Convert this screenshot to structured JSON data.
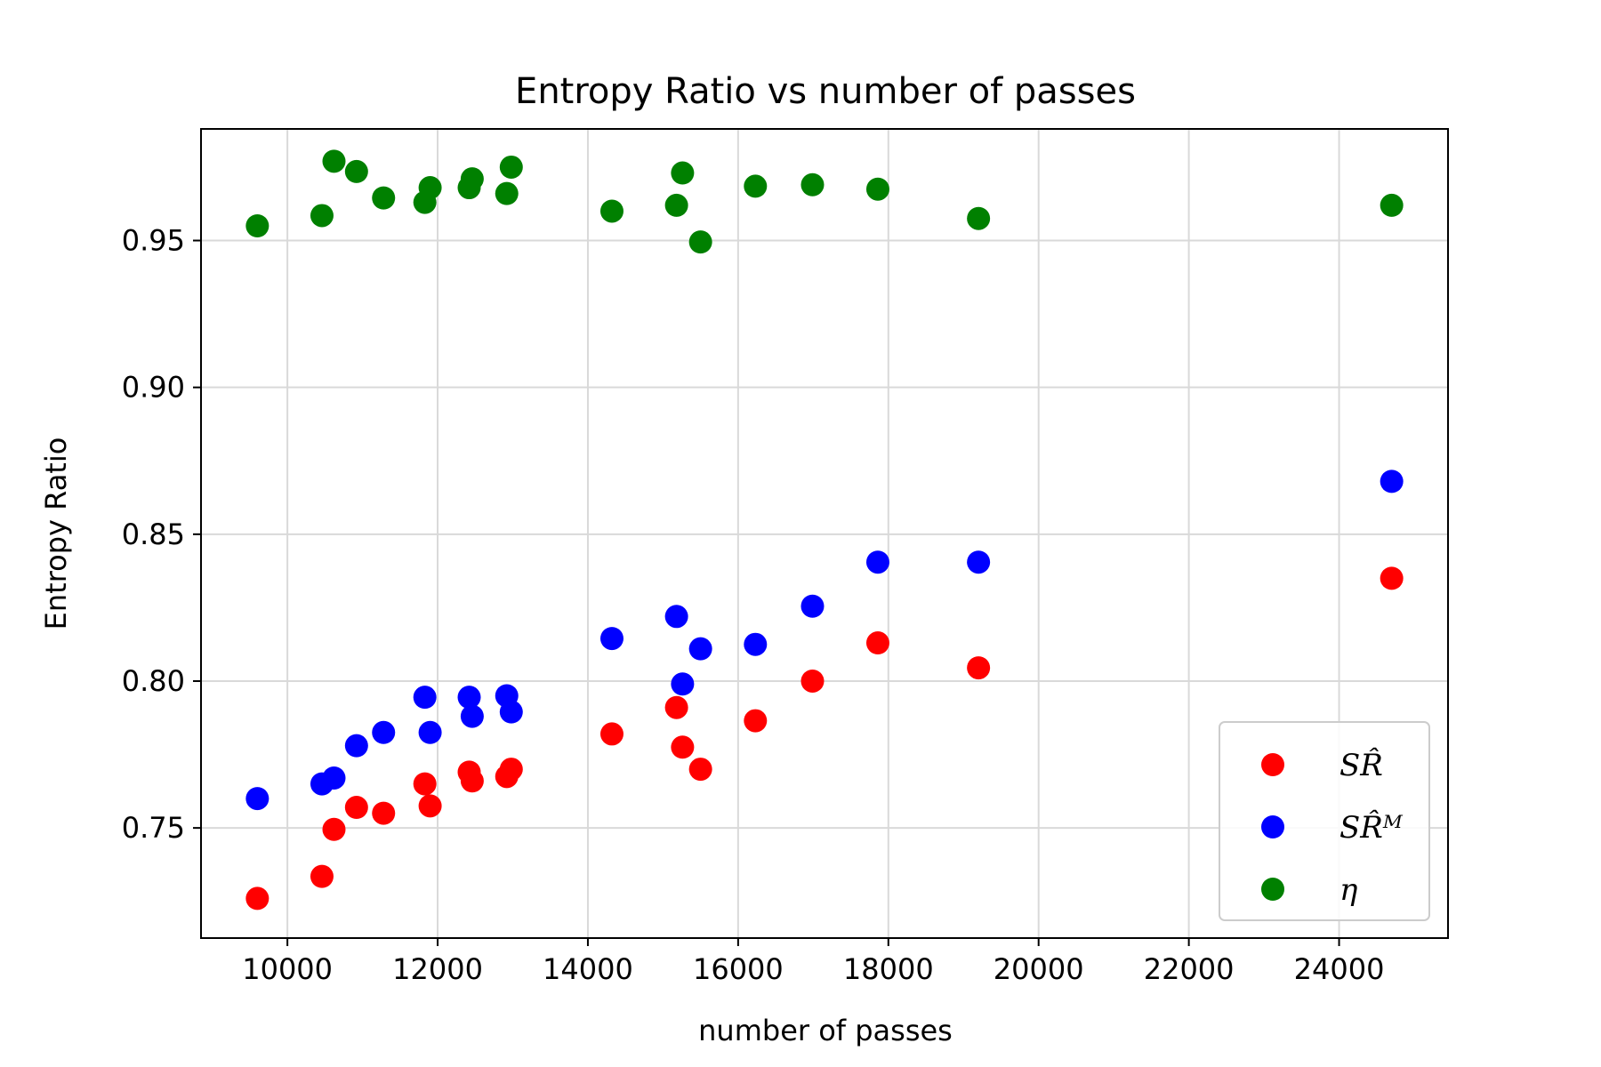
{
  "chart_data": {
    "type": "scatter",
    "title": "Entropy Ratio vs number of passes",
    "xlabel": "number of passes",
    "ylabel": "Entropy Ratio",
    "xlim": [
      8850,
      25450
    ],
    "ylim": [
      0.7125,
      0.988
    ],
    "xticks": [
      10000,
      12000,
      14000,
      16000,
      18000,
      20000,
      22000,
      24000
    ],
    "xtick_labels": [
      "10000",
      "12000",
      "14000",
      "16000",
      "18000",
      "20000",
      "22000",
      "24000"
    ],
    "yticks": [
      0.75,
      0.8,
      0.85,
      0.9,
      0.95
    ],
    "ytick_labels": [
      "0.75",
      "0.80",
      "0.85",
      "0.90",
      "0.95"
    ],
    "grid": true,
    "legend_position": "lower-right",
    "x": [
      9600,
      10460,
      10620,
      10920,
      11280,
      11830,
      11900,
      12420,
      12460,
      12920,
      12980,
      14320,
      15180,
      15260,
      15500,
      16230,
      16990,
      17860,
      19200,
      24700
    ],
    "series": [
      {
        "name": "SR̂",
        "color": "#ff0000",
        "values": [
          0.726,
          0.7335,
          0.7495,
          0.757,
          0.755,
          0.765,
          0.7575,
          0.769,
          0.766,
          0.7675,
          0.77,
          0.782,
          0.791,
          0.7775,
          0.77,
          0.7865,
          0.8,
          0.813,
          0.8045,
          0.835
        ]
      },
      {
        "name": "SR̂ᴹ",
        "color": "#0000ff",
        "values": [
          0.76,
          0.765,
          0.767,
          0.778,
          0.7825,
          0.7945,
          0.7825,
          0.7945,
          0.788,
          0.795,
          0.7895,
          0.8145,
          0.822,
          0.799,
          0.811,
          0.8125,
          0.8255,
          0.8405,
          0.8405,
          0.868
        ]
      },
      {
        "name": "η",
        "color": "#008000",
        "values": [
          0.955,
          0.9585,
          0.977,
          0.9735,
          0.9645,
          0.963,
          0.968,
          0.968,
          0.971,
          0.966,
          0.975,
          0.96,
          0.962,
          0.973,
          0.9495,
          0.9685,
          0.969,
          0.9675,
          0.9575,
          0.962
        ]
      }
    ]
  },
  "colors": {
    "grid": "#d9d9d9",
    "axes": "#000000",
    "background": "#ffffff",
    "legend_border": "#cccccc"
  }
}
